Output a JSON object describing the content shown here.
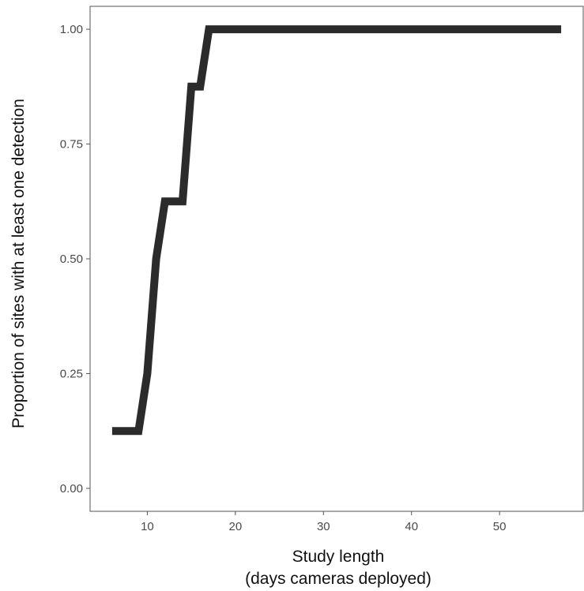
{
  "chart_data": {
    "type": "line",
    "title": "",
    "xlabel_lines": [
      "Study length",
      "(days cameras deployed)"
    ],
    "ylabel": "Proportion of sites with at least one detection",
    "xlim": [
      3.5,
      59.5
    ],
    "ylim": [
      -0.05,
      1.05
    ],
    "x_ticks": [
      10,
      20,
      30,
      40,
      50
    ],
    "x_tick_labels": [
      "10",
      "20",
      "30",
      "40",
      "50"
    ],
    "y_ticks": [
      0,
      0.25,
      0.5,
      0.75,
      1.0
    ],
    "y_tick_labels": [
      "0.00",
      "0.25",
      "0.50",
      "0.75",
      "1.00"
    ],
    "grid": false,
    "legend": "none",
    "line_color": "#2b2b2b",
    "series": [
      {
        "x": [
          6,
          9,
          10,
          11,
          12,
          14,
          15,
          16,
          17,
          57
        ],
        "y": [
          0.125,
          0.125,
          0.25,
          0.5,
          0.625,
          0.625,
          0.875,
          0.875,
          1.0,
          1.0
        ]
      }
    ]
  }
}
